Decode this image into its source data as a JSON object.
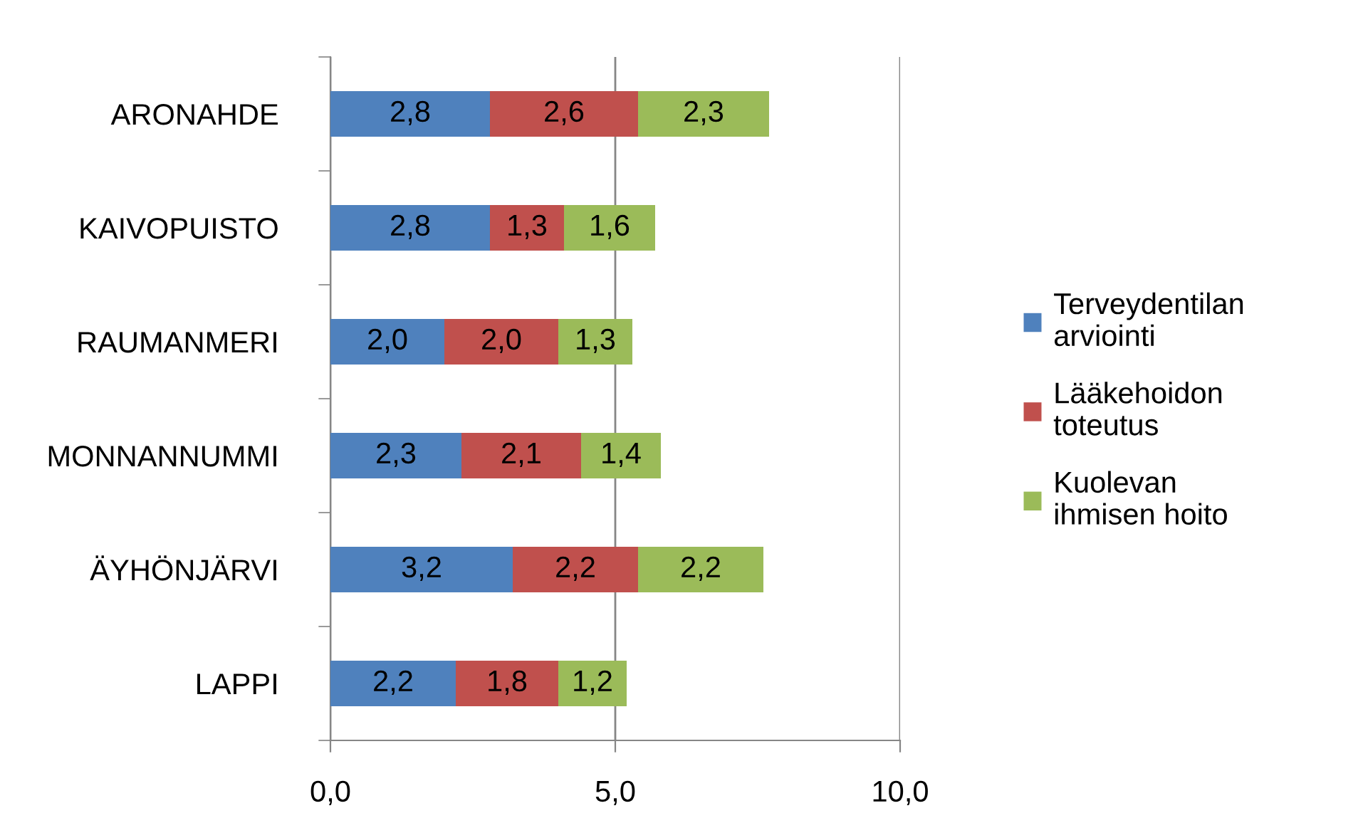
{
  "chart_data": {
    "type": "bar",
    "orientation": "horizontal",
    "stacked": true,
    "categories": [
      "ARONAHDE",
      "KAIVOPUISTO",
      "RAUMANMERI",
      "MONNANNUMMI",
      "ÄYHÖNJÄRVI",
      "LAPPI"
    ],
    "series": [
      {
        "name": "Terveydentilan arviointi",
        "color": "#4f81bd",
        "values": [
          2.8,
          2.8,
          2.0,
          2.3,
          3.2,
          2.2
        ],
        "value_labels": [
          "2,8",
          "2,8",
          "2,0",
          "2,3",
          "3,2",
          "2,2"
        ]
      },
      {
        "name": "Lääkehoidon toteutus",
        "color": "#c0504d",
        "values": [
          2.6,
          1.3,
          2.0,
          2.1,
          2.2,
          1.8
        ],
        "value_labels": [
          "2,6",
          "1,3",
          "2,0",
          "2,1",
          "2,2",
          "1,8"
        ]
      },
      {
        "name": "Kuolevan ihmisen hoito",
        "color": "#9bbb59",
        "values": [
          2.3,
          1.6,
          1.3,
          1.4,
          2.2,
          1.2
        ],
        "value_labels": [
          "2,3",
          "1,6",
          "1,3",
          "1,4",
          "2,2",
          "1,2"
        ]
      }
    ],
    "xlim": [
      0,
      10
    ],
    "xticks": [
      {
        "value": 0,
        "label": "0,0"
      },
      {
        "value": 5,
        "label": "5,0"
      },
      {
        "value": 10,
        "label": "10,0"
      }
    ],
    "grid": "x",
    "legend": "right"
  }
}
